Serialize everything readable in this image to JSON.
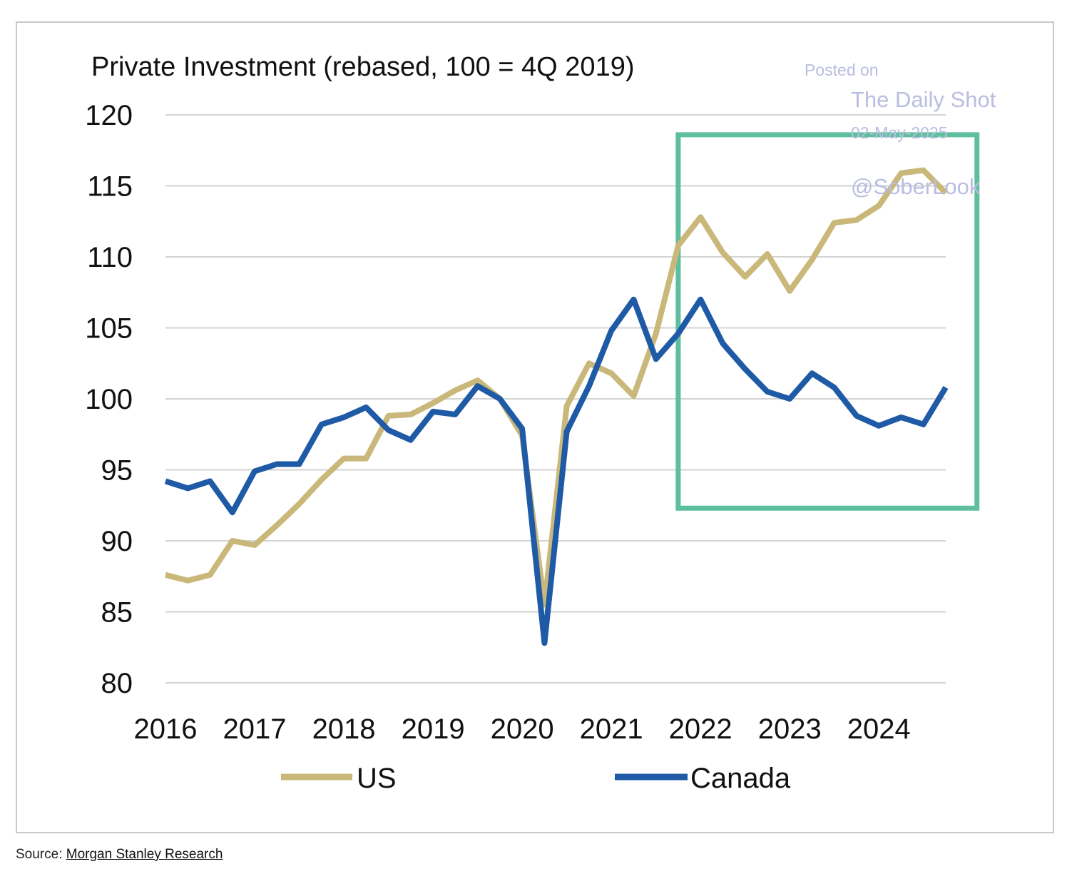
{
  "chart_data": {
    "type": "line",
    "title": "Private Investment (rebased, 100 = 4Q 2019)",
    "xlabel": "",
    "ylabel": "",
    "ylim": [
      80,
      120
    ],
    "yticks": [
      120,
      115,
      110,
      105,
      100,
      95,
      90,
      85,
      80
    ],
    "xlim": [
      2016.0,
      2024.75
    ],
    "xticks": [
      2016,
      2017,
      2018,
      2019,
      2020,
      2021,
      2022,
      2023,
      2024
    ],
    "xtick_labels": [
      "2016",
      "2017",
      "2018",
      "2019",
      "2020",
      "2021",
      "2022",
      "2023",
      "2024"
    ],
    "grid": true,
    "legend_position": "bottom",
    "series": [
      {
        "name": "US",
        "color": "#c9b87a",
        "x": [
          2016.0,
          2016.25,
          2016.5,
          2016.75,
          2017.0,
          2017.25,
          2017.5,
          2017.75,
          2018.0,
          2018.25,
          2018.5,
          2018.75,
          2019.0,
          2019.25,
          2019.5,
          2019.75,
          2020.0,
          2020.25,
          2020.5,
          2020.75,
          2021.0,
          2021.25,
          2021.5,
          2021.75,
          2022.0,
          2022.25,
          2022.5,
          2022.75,
          2023.0,
          2023.25,
          2023.5,
          2023.75,
          2024.0,
          2024.25,
          2024.5,
          2024.75
        ],
        "values": [
          87.6,
          87.2,
          87.6,
          90.0,
          89.7,
          91.1,
          92.6,
          94.3,
          95.8,
          95.8,
          98.8,
          98.9,
          99.7,
          100.6,
          101.3,
          100.0,
          97.4,
          85.5,
          99.5,
          102.5,
          101.8,
          100.2,
          104.6,
          110.8,
          112.8,
          110.3,
          108.6,
          110.2,
          107.6,
          109.8,
          112.4,
          112.6,
          113.6,
          115.9,
          116.1,
          114.5
        ]
      },
      {
        "name": "Canada",
        "color": "#1f5aa6",
        "x": [
          2016.0,
          2016.25,
          2016.5,
          2016.75,
          2017.0,
          2017.25,
          2017.5,
          2017.75,
          2018.0,
          2018.25,
          2018.5,
          2018.75,
          2019.0,
          2019.25,
          2019.5,
          2019.75,
          2020.0,
          2020.25,
          2020.5,
          2020.75,
          2021.0,
          2021.25,
          2021.5,
          2021.75,
          2022.0,
          2022.25,
          2022.5,
          2022.75,
          2023.0,
          2023.25,
          2023.5,
          2023.75,
          2024.0,
          2024.25,
          2024.5,
          2024.75
        ],
        "values": [
          94.2,
          93.7,
          94.2,
          92.0,
          94.9,
          95.4,
          95.4,
          98.2,
          98.7,
          99.4,
          97.8,
          97.1,
          99.1,
          98.9,
          100.9,
          100.0,
          97.9,
          82.8,
          97.7,
          100.9,
          104.8,
          107.0,
          102.8,
          104.6,
          107.0,
          103.9,
          102.1,
          100.5,
          100.0,
          101.8,
          100.8,
          98.8,
          98.1,
          98.7,
          98.2,
          100.8
        ]
      }
    ],
    "annotations": {
      "highlight_box": {
        "x_from": 2021.75,
        "x_to": 2025.1,
        "y_from": 92.3,
        "y_to": 118.6,
        "color": "#5ebf9e"
      }
    }
  },
  "watermark": {
    "posted_on": "Posted on",
    "site": "The Daily Shot",
    "date": "02-May-2025",
    "handle": "@SoberLook"
  },
  "source": {
    "prefix": "Source: ",
    "link_text": "Morgan Stanley Research"
  }
}
